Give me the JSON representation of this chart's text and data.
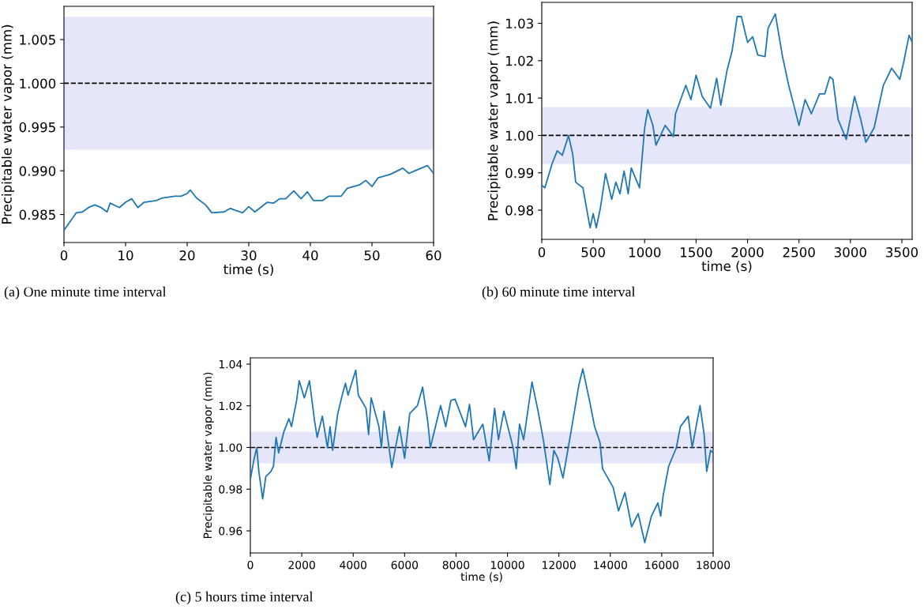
{
  "chart_data": [
    {
      "type": "line",
      "xlabel": "time (s)",
      "ylabel": "Precipitable water vapor (mm)",
      "annotations": [
        "(a) One minute time interval"
      ],
      "x": [
        0,
        1,
        2,
        3,
        4,
        5,
        6,
        7,
        7.5,
        9,
        10,
        11,
        12,
        13,
        15,
        16,
        18,
        19,
        20,
        20.5,
        21.5,
        23,
        24,
        26,
        27,
        29,
        30,
        31,
        33,
        34,
        35,
        36,
        37.3,
        38.5,
        39.5,
        40.5,
        42,
        43,
        45,
        46,
        48,
        49,
        50,
        51,
        53,
        55,
        56,
        57,
        59,
        60
      ],
      "series": [
        {
          "color": "#1f77b4",
          "values": [
            0.9832,
            0.9842,
            0.9852,
            0.9853,
            0.9858,
            0.9861,
            0.9858,
            0.9853,
            0.9863,
            0.9858,
            0.9864,
            0.9868,
            0.9858,
            0.9864,
            0.9866,
            0.9869,
            0.9871,
            0.9871,
            0.9874,
            0.9878,
            0.9869,
            0.9861,
            0.9852,
            0.9853,
            0.9857,
            0.9852,
            0.9859,
            0.9853,
            0.9864,
            0.9863,
            0.9868,
            0.9868,
            0.9877,
            0.9868,
            0.9876,
            0.9866,
            0.9866,
            0.9871,
            0.9871,
            0.988,
            0.9884,
            0.9889,
            0.9882,
            0.9892,
            0.9896,
            0.9903,
            0.9897,
            0.99,
            0.9906,
            0.9897
          ]
        }
      ],
      "xlim": [
        0,
        60
      ],
      "ylim": [
        0.9818,
        1.0088
      ],
      "xticks": [
        0,
        10,
        20,
        30,
        40,
        50,
        60
      ],
      "yticks": [
        {
          "value": 0.985,
          "label": "0.985"
        },
        {
          "value": 0.99,
          "label": "0.990"
        },
        {
          "value": 0.995,
          "label": "0.995"
        },
        {
          "value": 1.0,
          "label": "1.000"
        },
        {
          "value": 1.005,
          "label": "1.005"
        }
      ],
      "ref_lines": [
        {
          "axis": "y",
          "value": 1.0,
          "color": "#000000",
          "line_style": "dashed"
        }
      ],
      "bands": [
        {
          "axis": "y",
          "from": 0.9924,
          "to": 1.0076,
          "color": "#e6e6fa"
        }
      ]
    },
    {
      "type": "line",
      "xlabel": "time (s)",
      "ylabel": "Precipitable water vapor (mm)",
      "annotations": [
        "(b) 60 minute time interval"
      ],
      "x": [
        0,
        30,
        100,
        150,
        200,
        260,
        300,
        330,
        400,
        450,
        470,
        500,
        530,
        570,
        620,
        680,
        720,
        760,
        800,
        840,
        870,
        950,
        1000,
        1030,
        1080,
        1110,
        1200,
        1280,
        1300,
        1400,
        1450,
        1500,
        1560,
        1640,
        1700,
        1740,
        1800,
        1850,
        1900,
        1940,
        2000,
        2050,
        2100,
        2170,
        2200,
        2270,
        2340,
        2400,
        2450,
        2500,
        2560,
        2620,
        2700,
        2750,
        2800,
        2830,
        2880,
        2960,
        3040,
        3100,
        3150,
        3230,
        3320,
        3400,
        3480,
        3520,
        3570,
        3600
      ],
      "series": [
        {
          "color": "#1f77b4",
          "values": [
            0.9867,
            0.986,
            0.9924,
            0.9959,
            0.9947,
            1.0,
            0.9951,
            0.9875,
            0.986,
            0.9783,
            0.9753,
            0.9791,
            0.9753,
            0.9806,
            0.9898,
            0.9829,
            0.9875,
            0.9844,
            0.9905,
            0.9844,
            0.9913,
            0.986,
            1.002,
            1.0069,
            1.0027,
            0.9974,
            1.0027,
            0.9997,
            1.0058,
            1.0134,
            1.0096,
            1.0161,
            1.0104,
            1.0073,
            1.0153,
            1.0081,
            1.0173,
            1.0226,
            1.0318,
            1.0318,
            1.0249,
            1.0264,
            1.0215,
            1.0211,
            1.0287,
            1.0325,
            1.0211,
            1.0134,
            1.0081,
            1.0027,
            1.0096,
            1.0058,
            1.0111,
            1.0111,
            1.0157,
            1.015,
            1.0043,
            0.9989,
            1.0104,
            1.0043,
            0.9982,
            1.002,
            1.0134,
            1.018,
            1.015,
            1.0199,
            1.0268,
            1.0249
          ]
        }
      ],
      "xlim": [
        0,
        3600
      ],
      "ylim": [
        0.9722,
        1.0356
      ],
      "xticks": [
        0,
        500,
        1000,
        1500,
        2000,
        2500,
        3000,
        3500
      ],
      "yticks": [
        {
          "value": 0.98,
          "label": "0.98"
        },
        {
          "value": 0.99,
          "label": "0.99"
        },
        {
          "value": 1.0,
          "label": "1.00"
        },
        {
          "value": 1.01,
          "label": "1.01"
        },
        {
          "value": 1.02,
          "label": "1.02"
        },
        {
          "value": 1.03,
          "label": "1.03"
        }
      ],
      "ref_lines": [
        {
          "axis": "y",
          "value": 1.0,
          "color": "#000000",
          "line_style": "dashed"
        }
      ],
      "bands": [
        {
          "axis": "y",
          "from": 0.9924,
          "to": 1.0076,
          "color": "#e6e6fa"
        }
      ]
    },
    {
      "type": "line",
      "xlabel": "time (s)",
      "ylabel": "Precipitable water vapor (mm)",
      "annotations": [
        "(c) 5 hours time interval"
      ],
      "x": [
        0,
        150,
        250,
        330,
        480,
        600,
        800,
        900,
        1000,
        1100,
        1300,
        1500,
        1600,
        1800,
        1900,
        2100,
        2300,
        2500,
        2600,
        2800,
        3000,
        3100,
        3200,
        3400,
        3600,
        3700,
        3800,
        4100,
        4200,
        4500,
        4600,
        4700,
        5000,
        5100,
        5200,
        5500,
        5800,
        6000,
        6200,
        6500,
        6700,
        6900,
        7000,
        7200,
        7400,
        7600,
        7800,
        7960,
        8370,
        8525,
        8680,
        9040,
        9290,
        9500,
        9650,
        9860,
        10220,
        10340,
        10470,
        10630,
        10954,
        11190,
        11395,
        11650,
        11805,
        11960,
        12160,
        12470,
        12780,
        12930,
        13190,
        13390,
        13600,
        13700,
        14110,
        14320,
        14570,
        14830,
        15085,
        15340,
        15600,
        15850,
        15960,
        16060,
        16270,
        16570,
        16725,
        17030,
        17185,
        17490,
        17650,
        17750,
        17900,
        18000
      ],
      "series": [
        {
          "color": "#1f77b4",
          "values": [
            0.9847,
            0.9948,
            0.9999,
            0.9885,
            0.9753,
            0.986,
            0.9885,
            0.991,
            1.0049,
            0.9974,
            1.0074,
            1.0138,
            1.01,
            1.0226,
            1.032,
            1.0238,
            1.032,
            1.0125,
            1.0049,
            1.015,
            0.9999,
            1.01,
            0.9986,
            1.0163,
            1.0264,
            1.0308,
            1.0251,
            1.0371,
            1.0251,
            1.0188,
            1.0062,
            1.0238,
            1.01,
            0.9999,
            1.0175,
            0.9904,
            1.01,
            0.9948,
            1.0163,
            1.0201,
            1.0289,
            1.0125,
            0.9999,
            1.01,
            1.0201,
            1.01,
            1.0226,
            1.0232,
            1.01,
            1.0207,
            1.0037,
            1.0112,
            0.9936,
            1.0188,
            1.0037,
            1.0175,
            0.9999,
            0.9898,
            1.0112,
            1.0037,
            1.0314,
            1.0175,
            1.0037,
            0.9822,
            0.9986,
            0.9948,
            0.9854,
            1.0074,
            1.0302,
            1.0377,
            1.0226,
            1.01,
            1.0024,
            0.9898,
            0.9809,
            0.9696,
            0.9784,
            0.962,
            0.9683,
            0.9544,
            0.9671,
            0.9734,
            0.9671,
            0.9772,
            0.991,
            0.9999,
            1.01,
            1.015,
            0.9999,
            1.0201,
            1.0062,
            0.9885,
            0.9986,
            0.9974
          ]
        }
      ],
      "xlim": [
        0,
        18000
      ],
      "ylim": [
        0.9494,
        1.043
      ],
      "xticks": [
        0,
        2000,
        4000,
        6000,
        8000,
        10000,
        12000,
        14000,
        16000,
        18000
      ],
      "yticks": [
        {
          "value": 0.96,
          "label": "0.96"
        },
        {
          "value": 0.98,
          "label": "0.98"
        },
        {
          "value": 1.0,
          "label": "1.00"
        },
        {
          "value": 1.02,
          "label": "1.02"
        },
        {
          "value": 1.04,
          "label": "1.04"
        }
      ],
      "ref_lines": [
        {
          "axis": "y",
          "value": 1.0,
          "color": "#000000",
          "line_style": "dashed"
        }
      ],
      "bands": [
        {
          "axis": "y",
          "from": 0.9924,
          "to": 1.0076,
          "color": "#e6e6fa"
        }
      ]
    }
  ]
}
